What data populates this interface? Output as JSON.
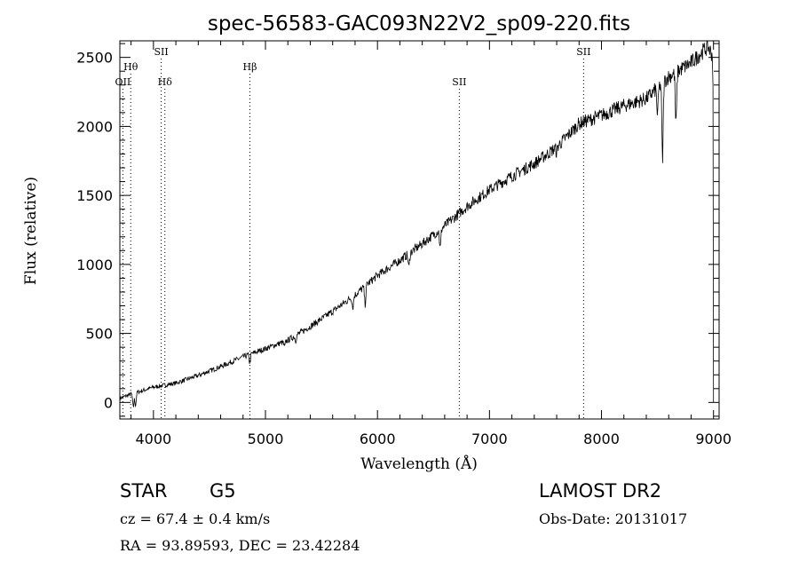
{
  "chart_data": {
    "type": "line",
    "title": "spec-56583-GAC093N22V2_sp09-220.fits",
    "xlabel": "Wavelength (Å)",
    "ylabel": "Flux (relative)",
    "xlim": [
      3700,
      9050
    ],
    "ylim": [
      -120,
      2620
    ],
    "xticks": [
      4000,
      5000,
      6000,
      7000,
      8000,
      9000
    ],
    "yticks": [
      0,
      500,
      1000,
      1500,
      2000,
      2500
    ],
    "x_minor_step": 200,
    "y_minor_step": 100,
    "grid": false,
    "line_color": "#000000",
    "continuum": [
      [
        3700,
        30
      ],
      [
        3800,
        60
      ],
      [
        3900,
        85
      ],
      [
        4000,
        110
      ],
      [
        4200,
        140
      ],
      [
        4400,
        195
      ],
      [
        4600,
        260
      ],
      [
        4800,
        330
      ],
      [
        5000,
        390
      ],
      [
        5200,
        450
      ],
      [
        5400,
        550
      ],
      [
        5600,
        660
      ],
      [
        5800,
        780
      ],
      [
        6000,
        920
      ],
      [
        6200,
        1030
      ],
      [
        6400,
        1150
      ],
      [
        6600,
        1280
      ],
      [
        6800,
        1420
      ],
      [
        7000,
        1540
      ],
      [
        7200,
        1640
      ],
      [
        7400,
        1730
      ],
      [
        7600,
        1850
      ],
      [
        7800,
        2020
      ],
      [
        8000,
        2080
      ],
      [
        8200,
        2150
      ],
      [
        8400,
        2200
      ],
      [
        8600,
        2360
      ],
      [
        8800,
        2460
      ],
      [
        8950,
        2580
      ],
      [
        9000,
        2500
      ]
    ],
    "absorption_features": [
      {
        "x": 3820,
        "depth": 100
      },
      {
        "x": 3840,
        "depth": 90
      },
      {
        "x": 4860,
        "depth": 60
      },
      {
        "x": 5170,
        "depth": 40
      },
      {
        "x": 5270,
        "depth": 35
      },
      {
        "x": 5780,
        "depth": 80
      },
      {
        "x": 5890,
        "depth": 130
      },
      {
        "x": 6280,
        "depth": 100
      },
      {
        "x": 6560,
        "depth": 140
      },
      {
        "x": 7600,
        "depth": 40
      },
      {
        "x": 8500,
        "depth": 200
      },
      {
        "x": 8545,
        "depth": 560
      },
      {
        "x": 8665,
        "depth": 380
      }
    ],
    "line_markers": [
      {
        "label": "OII",
        "x": 3727,
        "row": 3
      },
      {
        "label": "Hθ",
        "x": 3797,
        "row": 2
      },
      {
        "label": "SII",
        "x": 4069,
        "row": 1
      },
      {
        "label": "Hδ",
        "x": 4102,
        "row": 3
      },
      {
        "label": "Hβ",
        "x": 4861,
        "row": 2
      },
      {
        "label": "SII",
        "x": 6731,
        "row": 3
      },
      {
        "label": "SII",
        "x": 7840,
        "row": 1
      }
    ]
  },
  "info": {
    "object_type": "STAR",
    "subclass": "G5",
    "survey": "LAMOST DR2",
    "cz": "cz = 67.4 ± 0.4 km/s",
    "obs_date": "Obs-Date: 20131017",
    "coords": "RA =  93.89593, DEC =  23.42284"
  }
}
